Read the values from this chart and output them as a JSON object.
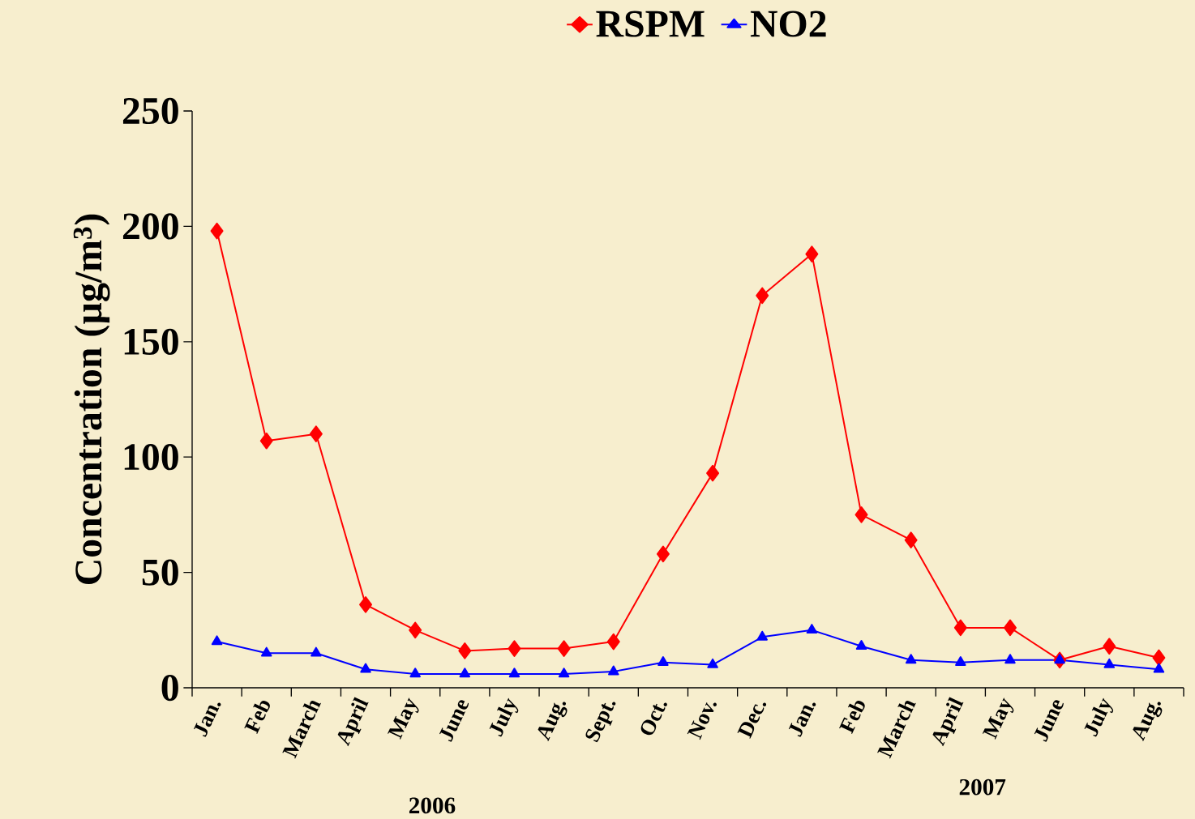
{
  "chart_data": {
    "type": "line",
    "ylabel": "Concentration (µg/m$^{3}$)",
    "categories": [
      "Jan.",
      "Feb",
      "March",
      "April",
      "May",
      "June",
      "July",
      "Aug.",
      "Sept.",
      "Oct.",
      "Nov.",
      "Dec.",
      "Jan.",
      "Feb",
      "March",
      "April",
      "May",
      "June",
      "July",
      "Aug."
    ],
    "series": [
      {
        "name": "RSPM",
        "color": "#ff0000",
        "marker": "diamond",
        "values": [
          198,
          107,
          110,
          36,
          25,
          16,
          17,
          17,
          20,
          58,
          93,
          170,
          188,
          75,
          64,
          26,
          26,
          12,
          18,
          13
        ]
      },
      {
        "name": "NO2",
        "color": "#0000ff",
        "marker": "triangle",
        "values": [
          20,
          15,
          15,
          8,
          6,
          6,
          6,
          6,
          7,
          11,
          10,
          22,
          25,
          18,
          12,
          11,
          12,
          12,
          10,
          8
        ]
      }
    ],
    "ylim": [
      0,
      250
    ],
    "yticks": [
      0,
      50,
      100,
      150,
      200,
      250
    ],
    "grid": false,
    "legend": "top",
    "line_style": "solid",
    "annotations": [
      "2006",
      "2007"
    ]
  }
}
